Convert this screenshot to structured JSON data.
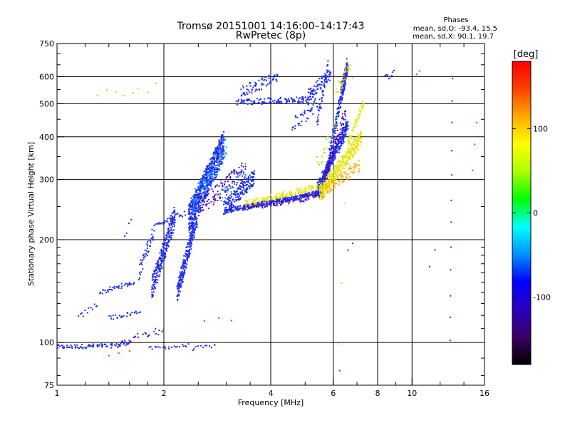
{
  "chart_data": {
    "type": "scatter",
    "title": "Tromsø 20151001 14:16:00–14:17:43",
    "subtitle": "RwPretec (8p)",
    "xlabel": "Frequency [MHz]",
    "ylabel": "Stationary phase Virtual Height [km]",
    "x_scale": "log",
    "y_scale": "log",
    "xlim": [
      1,
      16
    ],
    "ylim": [
      75,
      750
    ],
    "x_ticks": [
      1,
      2,
      4,
      6,
      8,
      10,
      16
    ],
    "x_tick_labels": [
      "1",
      "2",
      "4",
      "6",
      "8",
      "10",
      "16"
    ],
    "y_ticks": [
      75,
      100,
      200,
      300,
      400,
      500,
      600,
      750
    ],
    "y_tick_labels": [
      "75",
      "100",
      "200",
      "300",
      "400",
      "500",
      "600",
      "750"
    ],
    "grid": true,
    "stats": {
      "title": "Phases",
      "line_o": "mean, sd,O:  -93.4, 15.5",
      "line_x": "mean, sd,X:  90.1, 19.7"
    },
    "colorbar": {
      "label": "[deg]",
      "range": [
        -180,
        180
      ],
      "tick_values": [
        100,
        0,
        -100
      ],
      "tick_labels": [
        "100",
        "0",
        "-100"
      ],
      "colors": [
        "#000000",
        "#3b0060",
        "#2a00c0",
        "#0000ff",
        "#0090ff",
        "#00ffff",
        "#00ff00",
        "#aaff00",
        "#ffff00",
        "#ffaa00",
        "#ff4000",
        "#ff0000"
      ]
    },
    "series": [
      {
        "color": "#1d2cf0",
        "phase": -93,
        "segments": [
          {
            "x0": 1.0,
            "x1": 1.5,
            "y0": 97,
            "y1": 98,
            "n": 70,
            "j": 0.015
          },
          {
            "x0": 1.5,
            "x1": 1.62,
            "y0": 99,
            "y1": 101,
            "n": 16,
            "j": 0.02
          },
          {
            "x0": 1.82,
            "x1": 2.35,
            "y0": 96,
            "y1": 98,
            "n": 22,
            "j": 0.012
          },
          {
            "x0": 2.4,
            "x1": 2.8,
            "y0": 96,
            "y1": 98,
            "n": 12,
            "j": 0.012
          },
          {
            "x0": 1.15,
            "x1": 1.3,
            "y0": 118,
            "y1": 130,
            "n": 12,
            "j": 0.02
          },
          {
            "x0": 1.32,
            "x1": 1.65,
            "y0": 140,
            "y1": 150,
            "n": 40,
            "j": 0.015
          },
          {
            "x0": 1.4,
            "x1": 1.72,
            "y0": 118,
            "y1": 123,
            "n": 25,
            "j": 0.015
          },
          {
            "x0": 1.7,
            "x1": 1.88,
            "y0": 160,
            "y1": 215,
            "n": 45,
            "j": 0.05
          },
          {
            "x0": 1.85,
            "x1": 2.15,
            "y0": 145,
            "y1": 235,
            "n": 260,
            "j": 0.07
          },
          {
            "x0": 1.9,
            "x1": 2.05,
            "y0": 222,
            "y1": 226,
            "n": 12,
            "j": 0.01
          },
          {
            "x0": 2.05,
            "x1": 2.3,
            "y0": 230,
            "y1": 238,
            "n": 16,
            "j": 0.02
          },
          {
            "x0": 2.18,
            "x1": 2.48,
            "y0": 140,
            "y1": 235,
            "n": 260,
            "j": 0.06
          },
          {
            "x0": 2.35,
            "x1": 2.95,
            "y0": 230,
            "y1": 380,
            "n": 750,
            "j": 0.09
          },
          {
            "x0": 2.95,
            "x1": 3.6,
            "y0": 245,
            "y1": 305,
            "n": 180,
            "j": 0.05
          },
          {
            "x0": 3.0,
            "x1": 5.6,
            "y0": 243,
            "y1": 275,
            "n": 340,
            "j": 0.015
          },
          {
            "x0": 5.4,
            "x1": 6.6,
            "y0": 280,
            "y1": 430,
            "n": 320,
            "j": 0.04
          },
          {
            "x0": 5.7,
            "x1": 6.55,
            "y0": 300,
            "y1": 650,
            "n": 180,
            "j": 0.05
          },
          {
            "x0": 6.35,
            "x1": 6.6,
            "y0": 520,
            "y1": 650,
            "n": 60,
            "j": 0.03
          },
          {
            "x0": 3.2,
            "x1": 5.3,
            "y0": 505,
            "y1": 515,
            "n": 130,
            "j": 0.02
          },
          {
            "x0": 3.3,
            "x1": 4.2,
            "y0": 540,
            "y1": 600,
            "n": 70,
            "j": 0.04
          },
          {
            "x0": 5.1,
            "x1": 5.9,
            "y0": 530,
            "y1": 610,
            "n": 70,
            "j": 0.04
          },
          {
            "x0": 5.4,
            "x1": 5.8,
            "y0": 440,
            "y1": 640,
            "n": 40,
            "j": 0.05
          },
          {
            "x0": 4.6,
            "x1": 5.5,
            "y0": 430,
            "y1": 510,
            "n": 40,
            "j": 0.05
          },
          {
            "x0": 8.4,
            "x1": 8.9,
            "y0": 595,
            "y1": 615,
            "n": 8,
            "j": 0.02
          }
        ]
      },
      {
        "color": "#4a0fb8",
        "phase": -120,
        "segments": [
          {
            "x0": 2.5,
            "x1": 3.4,
            "y0": 250,
            "y1": 320,
            "n": 120,
            "j": 0.06
          },
          {
            "x0": 3.4,
            "x1": 5.6,
            "y0": 248,
            "y1": 270,
            "n": 110,
            "j": 0.02
          },
          {
            "x0": 5.6,
            "x1": 6.5,
            "y0": 290,
            "y1": 470,
            "n": 100,
            "j": 0.05
          },
          {
            "x0": 1.5,
            "x1": 2.0,
            "y0": 100,
            "y1": 110,
            "n": 25,
            "j": 0.03
          }
        ]
      },
      {
        "color": "#1a9aff",
        "phase": -40,
        "segments": [
          {
            "x0": 2.4,
            "x1": 3.0,
            "y0": 250,
            "y1": 380,
            "n": 110,
            "j": 0.08
          },
          {
            "x0": 2.9,
            "x1": 3.4,
            "y0": 270,
            "y1": 320,
            "n": 30,
            "j": 0.05
          }
        ]
      },
      {
        "color": "#e6e600",
        "phase": 100,
        "segments": [
          {
            "x0": 3.4,
            "x1": 5.8,
            "y0": 255,
            "y1": 290,
            "n": 170,
            "j": 0.02
          },
          {
            "x0": 5.5,
            "x1": 7.2,
            "y0": 270,
            "y1": 400,
            "n": 330,
            "j": 0.05
          },
          {
            "x0": 6.6,
            "x1": 7.3,
            "y0": 380,
            "y1": 500,
            "n": 50,
            "j": 0.03
          },
          {
            "x0": 6.1,
            "x1": 6.7,
            "y0": 530,
            "y1": 650,
            "n": 22,
            "j": 0.04
          }
        ]
      },
      {
        "color": "#ffb000",
        "phase": 125,
        "segments": [
          {
            "x0": 5.6,
            "x1": 7.1,
            "y0": 275,
            "y1": 330,
            "n": 90,
            "j": 0.04
          },
          {
            "x0": 1.3,
            "x1": 1.9,
            "y0": 530,
            "y1": 560,
            "n": 8,
            "j": 0.03
          },
          {
            "x0": 6.3,
            "x1": 6.6,
            "y0": 560,
            "y1": 650,
            "n": 8,
            "j": 0.03
          }
        ]
      },
      {
        "color": "#99ee22",
        "phase": 50,
        "segments": [
          {
            "x0": 5.4,
            "x1": 6.2,
            "y0": 330,
            "y1": 440,
            "n": 25,
            "j": 0.05
          },
          {
            "x0": 6.2,
            "x1": 6.8,
            "y0": 100,
            "y1": 600,
            "n": 5,
            "j": 0.05
          }
        ]
      },
      {
        "color": "#ff3000",
        "phase": 160,
        "segments": [
          {
            "x0": 10.3,
            "x1": 10.5,
            "y0": 610,
            "y1": 625,
            "n": 2,
            "j": 0.01
          },
          {
            "x0": 14.8,
            "x1": 15.2,
            "y0": 320,
            "y1": 440,
            "n": 3,
            "j": 0.02
          },
          {
            "x0": 2.6,
            "x1": 3.1,
            "y0": 115,
            "y1": 118,
            "n": 3,
            "j": 0.02
          },
          {
            "x0": 1.4,
            "x1": 1.6,
            "y0": 93,
            "y1": 95,
            "n": 3,
            "j": 0.02
          }
        ]
      },
      {
        "color": "#1d2cf0",
        "phase": -93,
        "segments": [
          {
            "x0": 12.8,
            "x1": 13.0,
            "y0": 100,
            "y1": 600,
            "n": 12,
            "j": 0.02
          },
          {
            "x0": 11.2,
            "x1": 11.6,
            "y0": 170,
            "y1": 190,
            "n": 2,
            "j": 0.02
          },
          {
            "x0": 6.6,
            "x1": 6.8,
            "y0": 185,
            "y1": 195,
            "n": 2,
            "j": 0.01
          },
          {
            "x0": 6.2,
            "x1": 6.3,
            "y0": 82,
            "y1": 83,
            "n": 1,
            "j": 0.005
          },
          {
            "x0": 1.55,
            "x1": 1.62,
            "y0": 205,
            "y1": 230,
            "n": 4,
            "j": 0.02
          }
        ]
      }
    ]
  }
}
